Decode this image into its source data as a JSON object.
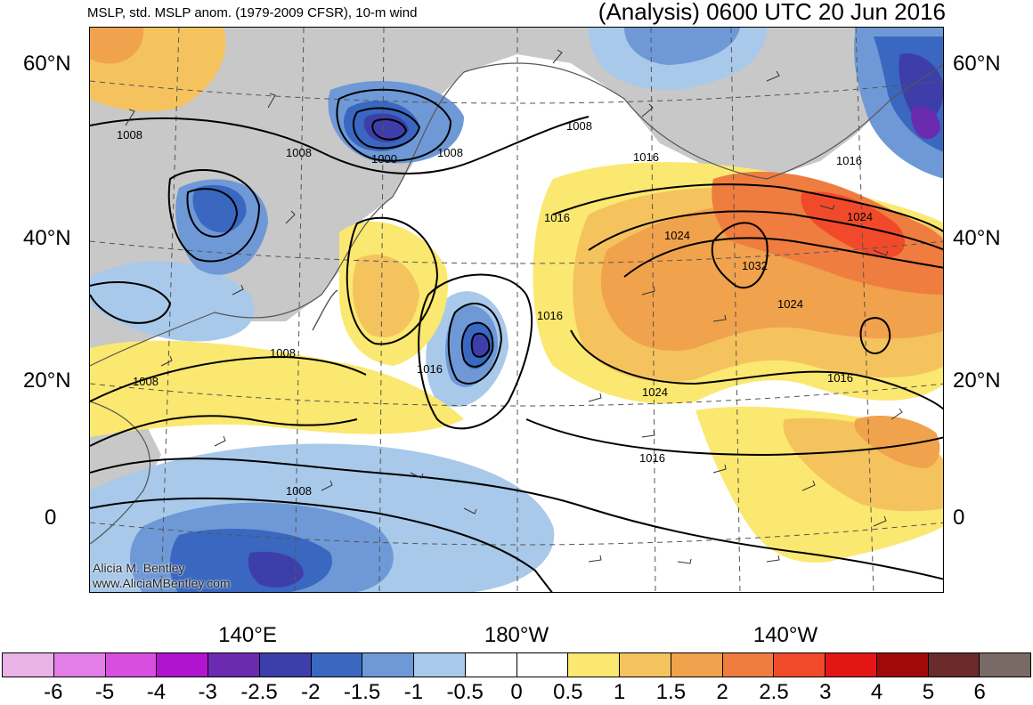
{
  "header": {
    "left_title": "MSLP, std. MSLP anom. (1979-2009 CFSR), 10-m wind",
    "right_title": "(Analysis) 0600 UTC 20 Jun 2016"
  },
  "axes": {
    "lat_labels_left": [
      "60°N",
      "40°N",
      "20°N",
      "0"
    ],
    "lat_labels_right": [
      "60°N",
      "40°N",
      "20°N",
      "0"
    ],
    "lon_labels": [
      "140°E",
      "180°W",
      "140°W"
    ]
  },
  "credit": {
    "name": "Alicia M. Bentley",
    "url": "www.AliciaMBentley.com"
  },
  "isobar_labels": [
    "1008",
    "1008",
    "1000",
    "1008",
    "1008",
    "1016",
    "1016",
    "1024",
    "1024",
    "1032",
    "1024",
    "1016",
    "1016",
    "1008",
    "1008",
    "1016",
    "1024",
    "1016",
    "1008",
    "1016"
  ],
  "colorbar": {
    "colors": [
      "#e9b3e8",
      "#e27ee6",
      "#d84fe0",
      "#b014cf",
      "#6b2bb0",
      "#3e3eaa",
      "#3a67c0",
      "#6e99d6",
      "#a8c9ea",
      "#ffffff",
      "#ffffff",
      "#fbe870",
      "#f5c35e",
      "#f1a24c",
      "#ef7d3f",
      "#f14a2a",
      "#e31515",
      "#a10909",
      "#6b2b2b",
      "#7a6a66"
    ],
    "ticks": [
      "-6",
      "-5",
      "-4",
      "-3",
      "-2.5",
      "-2",
      "-1.5",
      "-1",
      "-0.5",
      "0",
      "0.5",
      "1",
      "1.5",
      "2",
      "2.5",
      "3",
      "4",
      "5",
      "6"
    ]
  },
  "palette": {
    "land": "#c8c8c8",
    "coast": "#555555"
  }
}
